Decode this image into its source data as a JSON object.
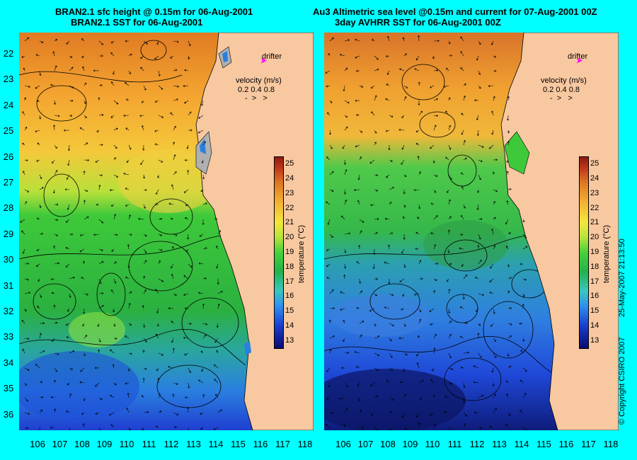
{
  "left_panel": {
    "title_line1": "BRAN2.1 sfc height @ 0.15m for 06-Aug-2001",
    "title_line2": "BRAN2.1 SST for 06-Aug-2001",
    "legend": {
      "drifter_label": "drifter",
      "velocity_label": "velocity (m/s)",
      "velocity_values": "0.2 0.4 0.8"
    }
  },
  "right_panel": {
    "title_line1": "Au3 Altimetric sea level  @0.15m and current for 07-Aug-2001 00Z",
    "title_line2": "3day AVHRR SST for 06-Aug-2001 00Z",
    "legend": {
      "drifter_label": "drifter",
      "velocity_label": "velocity (m/s)",
      "velocity_values": "0.2 0.4 0.8"
    }
  },
  "latitude_labels": [
    "22",
    "23",
    "24",
    "25",
    "26",
    "27",
    "28",
    "29",
    "30",
    "31",
    "32",
    "33",
    "34",
    "35",
    "36"
  ],
  "longitude_labels": [
    "106",
    "107",
    "108",
    "109",
    "110",
    "111",
    "112",
    "113",
    "114",
    "115",
    "116",
    "117",
    "118"
  ],
  "colorbar": {
    "unit_label": "temperature (°C)",
    "ticks": [
      "25",
      "24",
      "23",
      "22",
      "21",
      "20",
      "19",
      "18",
      "17",
      "16",
      "15",
      "14",
      "13"
    ],
    "range": [
      12.5,
      25.5
    ]
  },
  "credits": {
    "copyright": "© Copyright CSIRO 2007",
    "timestamp": "25-May-2007 21:13:50"
  },
  "colors": {
    "background": "#00ffff",
    "land": "#f8c8a0",
    "drifter_marker": "#ff00ff"
  }
}
